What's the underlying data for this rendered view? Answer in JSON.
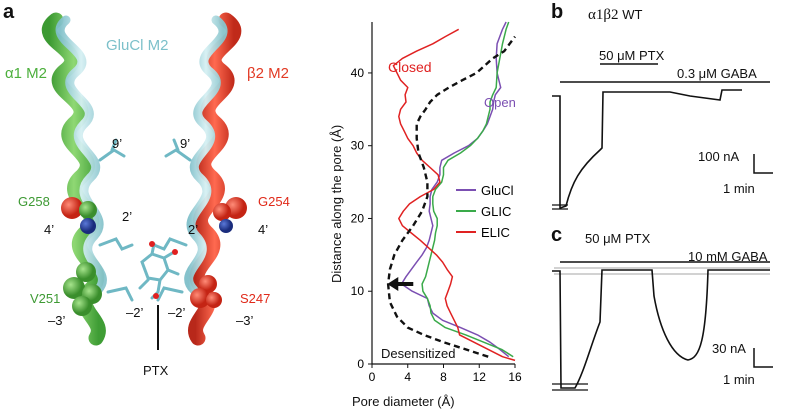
{
  "figure": {
    "panel_a": "a",
    "panel_b": "b",
    "panel_c": "c"
  },
  "structure": {
    "alpha_label": "α1 M2",
    "glucl_label": "GluCl M2",
    "beta_label": "β2 M2",
    "res_9_left": "9’",
    "res_9_right": "9’",
    "res_2_left": "2’",
    "res_2_right": "2’",
    "res_4_left": "4’",
    "res_4_right": "4’",
    "res_m2_left": "–2’",
    "res_m2_right": "–2’",
    "res_m3_left": "–3’",
    "res_m3_right": "–3’",
    "g258": "G258",
    "g254": "G254",
    "v251": "V251",
    "s247": "S247",
    "ptx": "PTX",
    "colors": {
      "alpha": "#5cb84c",
      "beta": "#e43a24",
      "glucl": "#a8d7de",
      "oxygen": "#e02020",
      "nitrogen": "#1e3fa0"
    }
  },
  "chart_data": {
    "type": "line",
    "xlabel": "Pore diameter (Å)",
    "ylabel": "Distance along the pore (Å)",
    "xlim": [
      0,
      16
    ],
    "ylim": [
      0,
      47
    ],
    "xticks": [
      "0",
      "4",
      "8",
      "12",
      "16"
    ],
    "yticks": [
      "0",
      "10",
      "20",
      "30",
      "40"
    ],
    "annotations": {
      "closed": "Closed",
      "open": "Open",
      "desensitized": "Desensitized"
    },
    "legend_position": "right",
    "series": [
      {
        "name": "GluCl",
        "color": "#7b4fb2",
        "x": [
          15.3,
          14.3,
          13.2,
          11.8,
          9.9,
          7.9,
          6.8,
          6.4,
          6.2,
          4.5,
          3.3,
          3.8,
          4.4,
          5.0,
          5.6,
          6.1,
          6.4,
          6.6,
          6.8,
          6.6,
          6.4,
          6.5,
          6.5,
          6.7,
          7.3,
          7.6,
          7.6,
          7.8,
          9.2,
          10.8,
          11.8,
          12.4,
          12.9,
          13.2,
          13.5,
          13.6,
          13.8,
          14.4,
          14.0,
          13.9,
          14.0,
          14.6,
          15.0
        ],
        "y": [
          1,
          2,
          3,
          4,
          5,
          6,
          7,
          8,
          9,
          10,
          11,
          12,
          13,
          14,
          15,
          16,
          17,
          18,
          19,
          20,
          21,
          22,
          23,
          24,
          25,
          26,
          27,
          28,
          29,
          30,
          31,
          32,
          33,
          34,
          35,
          36,
          37,
          38,
          40,
          42,
          44,
          46,
          47
        ]
      },
      {
        "name": "GLIC",
        "color": "#3aaa4a",
        "x": [
          15.8,
          14.5,
          12.5,
          10.5,
          8.2,
          7.0,
          6.6,
          6.5,
          6.2,
          5.7,
          5.6,
          6.0,
          6.2,
          6.4,
          6.6,
          6.8,
          7.0,
          7.1,
          7.3,
          7.3,
          6.9,
          6.8,
          6.8,
          7.1,
          7.8,
          8.0,
          8.0,
          8.5,
          9.9,
          11.0,
          11.8,
          12.4,
          12.8,
          13.0,
          13.2,
          13.2,
          13.5,
          13.9,
          14.0,
          14.3,
          14.6,
          15.0,
          15.3
        ],
        "y": [
          1,
          2,
          3,
          4,
          5,
          6,
          7,
          8,
          9,
          10,
          11,
          12,
          13,
          14,
          15,
          16,
          17,
          18,
          19,
          20,
          21,
          22,
          23,
          24,
          25,
          26,
          27,
          28,
          29,
          30,
          31,
          32,
          33,
          34,
          35,
          36,
          37,
          38,
          40,
          42,
          44,
          46,
          47
        ]
      },
      {
        "name": "ELIC",
        "color": "#e02222",
        "x": [
          16,
          14.6,
          13.0,
          11.4,
          9.8,
          9.6,
          9.2,
          8.8,
          8.4,
          8.2,
          8.5,
          8.8,
          9.0,
          8.4,
          7.9,
          7.2,
          6.3,
          5.4,
          4.4,
          3.4,
          3.0,
          3.5,
          4.2,
          5.4,
          6.9,
          7.6,
          7.4,
          6.5,
          5.6,
          5.0,
          4.6,
          4.0,
          3.6,
          3.2,
          3.0,
          3.2,
          3.8,
          3.7,
          4.0,
          3.2,
          2.8,
          2.4,
          3.4,
          5.0,
          6.8,
          8.2,
          9.7
        ],
        "y": [
          0.5,
          1,
          2,
          3,
          4,
          5,
          6,
          7,
          8,
          9,
          10,
          11,
          12,
          13,
          14,
          15,
          16,
          17,
          18,
          19,
          20,
          21,
          22,
          23,
          24,
          25,
          26,
          27,
          28,
          29,
          30,
          31,
          32,
          33,
          34,
          35,
          36,
          37,
          38,
          39,
          40,
          41,
          42,
          43,
          44,
          45,
          46
        ]
      },
      {
        "name": "Desensitized",
        "color": "#111111",
        "dashed": true,
        "x": [
          13.0,
          10.5,
          8.0,
          5.8,
          4.0,
          2.8,
          2.0,
          1.8,
          2.0,
          2.5,
          3.4,
          4.6,
          5.6,
          6.2,
          6.2,
          5.8,
          5.2,
          5.0,
          5.0,
          5.4,
          6.0,
          6.5,
          7.3,
          8.6,
          10.1,
          11.7,
          13.5,
          14.8,
          15.4,
          16.0
        ],
        "y": [
          1,
          2,
          3,
          4,
          5,
          6.5,
          8.5,
          11,
          13,
          15,
          17,
          19,
          21,
          23,
          25,
          27,
          29,
          31,
          33,
          34,
          35,
          36,
          37,
          38,
          39,
          40,
          42,
          43,
          44,
          45
        ]
      }
    ],
    "arrow_at": {
      "x": 3.5,
      "y": 11
    }
  },
  "panel_b": {
    "genotype": "α1β2",
    "wt": "WT",
    "ptx": "50 μM PTX",
    "gaba": "0.3 μM GABA",
    "scale_y": "100 nA",
    "scale_x": "1 min"
  },
  "panel_c": {
    "ptx": "50 μM PTX",
    "gaba": "10 mM GABA",
    "scale_y": "30 nA",
    "scale_x": "1 min"
  }
}
